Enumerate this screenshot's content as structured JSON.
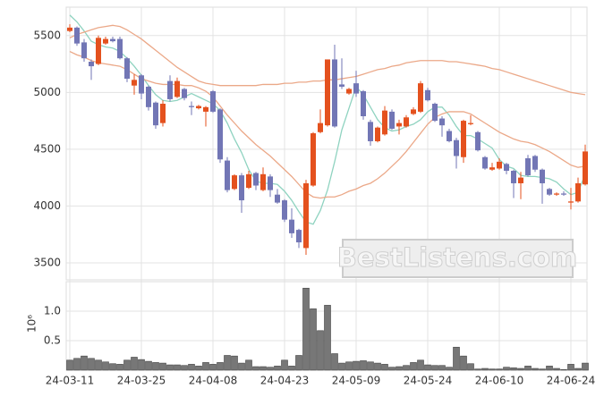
{
  "chart_data": [
    {
      "type": "candlestick",
      "annotation": "BestListens.com",
      "up_color": "#e4511e",
      "down_color": "#7276b5",
      "open": [
        5540,
        5570,
        5440,
        5270,
        5250,
        5430,
        5470,
        5470,
        5300,
        5060,
        5150,
        5050,
        4910,
        4730,
        5100,
        4960,
        5030,
        4880,
        4860,
        4830,
        5010,
        4850,
        4400,
        4150,
        4270,
        4160,
        4290,
        4140,
        4260,
        4100,
        4050,
        3880,
        3790,
        3630,
        4180,
        4650,
        4710,
        5290,
        5070,
        4990,
        5080,
        5010,
        4740,
        4570,
        4630,
        4830,
        4700,
        4700,
        4810,
        4830,
        5020,
        4900,
        4770,
        4660,
        4580,
        4430,
        4720,
        4650,
        4430,
        4320,
        4330,
        4370,
        4310,
        4200,
        4420,
        4440,
        4320,
        4150,
        4100,
        4110,
        4030,
        4040,
        4190
      ],
      "high": [
        5600,
        5580,
        5470,
        5290,
        5500,
        5490,
        5490,
        5490,
        5310,
        5160,
        5160,
        5060,
        4920,
        4930,
        5150,
        5130,
        5040,
        4920,
        4890,
        4880,
        5020,
        4860,
        4430,
        4280,
        4290,
        4310,
        4300,
        4340,
        4280,
        4150,
        4060,
        3980,
        3800,
        4230,
        4650,
        4850,
        5290,
        5420,
        5300,
        5040,
        5190,
        5020,
        4760,
        4700,
        4880,
        4850,
        4760,
        4800,
        4870,
        5100,
        5040,
        4910,
        4790,
        4680,
        4600,
        4760,
        4800,
        4660,
        4440,
        4380,
        4420,
        4380,
        4320,
        4300,
        4450,
        4450,
        4330,
        4160,
        4120,
        4130,
        4160,
        4250,
        4540
      ],
      "low": [
        5530,
        5410,
        5270,
        5110,
        5240,
        5420,
        5440,
        5290,
        5090,
        4980,
        4940,
        4840,
        4680,
        4700,
        4920,
        4950,
        4930,
        4800,
        4850,
        4700,
        4820,
        4380,
        4120,
        4140,
        3940,
        4150,
        4140,
        4130,
        4080,
        4020,
        3860,
        3720,
        3630,
        3570,
        4170,
        4640,
        4700,
        4690,
        5030,
        4980,
        4960,
        4760,
        4530,
        4560,
        4620,
        4670,
        4630,
        4690,
        4800,
        4820,
        4920,
        4740,
        4610,
        4560,
        4330,
        4380,
        4710,
        4480,
        4320,
        4310,
        4320,
        4280,
        4070,
        4060,
        4260,
        4300,
        4020,
        4090,
        4090,
        4090,
        3970,
        4030,
        4180
      ],
      "close": [
        5570,
        5430,
        5300,
        5230,
        5480,
        5470,
        5450,
        5300,
        5120,
        5110,
        4990,
        4870,
        4710,
        4900,
        4940,
        5100,
        4950,
        4870,
        4880,
        4870,
        4830,
        4410,
        4140,
        4270,
        4050,
        4280,
        4180,
        4280,
        4140,
        4030,
        3880,
        3760,
        3680,
        4200,
        4640,
        4730,
        5290,
        4700,
        5050,
        5030,
        4990,
        4790,
        4570,
        4690,
        4840,
        4680,
        4730,
        4780,
        4850,
        5080,
        4930,
        4750,
        4710,
        4570,
        4440,
        4750,
        4730,
        4490,
        4330,
        4340,
        4390,
        4310,
        4200,
        4250,
        4270,
        4320,
        4200,
        4100,
        4110,
        4100,
        4040,
        4200,
        4480
      ],
      "series": [
        {
          "color": "#8fd3c0",
          "values": [
            5680,
            5620,
            5540,
            5450,
            5420,
            5400,
            5390,
            5360,
            5300,
            5230,
            5150,
            5060,
            4980,
            4930,
            4920,
            4930,
            4960,
            4990,
            4960,
            4930,
            4900,
            4840,
            4730,
            4590,
            4470,
            4320,
            4220,
            4200,
            4200,
            4190,
            4130,
            4050,
            3950,
            3860,
            3840,
            3960,
            4140,
            4390,
            4670,
            4860,
            5050,
            4980,
            4870,
            4760,
            4690,
            4660,
            4670,
            4700,
            4720,
            4760,
            4830,
            4870,
            4870,
            4800,
            4700,
            4620,
            4620,
            4590,
            4550,
            4510,
            4410,
            4350,
            4330,
            4270,
            4260,
            4260,
            4250,
            4240,
            4210,
            4150,
            4100,
            4120,
            4280
          ]
        },
        {
          "color": "#eba888",
          "values": [
            5360,
            5330,
            5310,
            5280,
            5260,
            5250,
            5240,
            5230,
            5200,
            5160,
            5120,
            5100,
            5080,
            5070,
            5070,
            5070,
            5060,
            5060,
            5040,
            5010,
            4960,
            4880,
            4800,
            4730,
            4660,
            4600,
            4540,
            4490,
            4440,
            4380,
            4320,
            4260,
            4190,
            4120,
            4080,
            4070,
            4080,
            4080,
            4100,
            4130,
            4150,
            4180,
            4200,
            4240,
            4290,
            4350,
            4410,
            4480,
            4560,
            4640,
            4720,
            4780,
            4810,
            4830,
            4830,
            4830,
            4810,
            4770,
            4730,
            4690,
            4650,
            4620,
            4590,
            4570,
            4560,
            4540,
            4510,
            4480,
            4440,
            4400,
            4360,
            4340,
            4350
          ]
        },
        {
          "color": "#eba888",
          "values": [
            5480,
            5510,
            5530,
            5550,
            5570,
            5580,
            5590,
            5580,
            5550,
            5510,
            5470,
            5420,
            5370,
            5320,
            5270,
            5220,
            5180,
            5140,
            5100,
            5080,
            5070,
            5060,
            5060,
            5060,
            5060,
            5060,
            5060,
            5070,
            5070,
            5070,
            5080,
            5080,
            5090,
            5090,
            5100,
            5100,
            5110,
            5110,
            5120,
            5130,
            5140,
            5160,
            5180,
            5200,
            5210,
            5230,
            5240,
            5260,
            5270,
            5280,
            5280,
            5280,
            5280,
            5270,
            5270,
            5260,
            5250,
            5240,
            5230,
            5210,
            5200,
            5180,
            5160,
            5140,
            5120,
            5100,
            5080,
            5060,
            5040,
            5020,
            5000,
            4990,
            4980
          ]
        }
      ],
      "ylim": [
        3350,
        5750
      ],
      "yticks": [
        3500,
        4000,
        4500,
        5000,
        5500
      ],
      "grid": true
    },
    {
      "type": "bar",
      "ylabel": "10⁶",
      "color": "#777777",
      "categories": [
        "24-03-11",
        null,
        null,
        null,
        null,
        null,
        null,
        null,
        null,
        null,
        "24-03-25",
        null,
        null,
        null,
        null,
        null,
        null,
        null,
        null,
        null,
        "24-04-08",
        null,
        null,
        null,
        null,
        null,
        null,
        null,
        null,
        null,
        "24-04-23",
        null,
        null,
        null,
        null,
        null,
        null,
        null,
        null,
        null,
        "24-05-09",
        null,
        null,
        null,
        null,
        null,
        null,
        null,
        null,
        null,
        "24-05-24",
        null,
        null,
        null,
        null,
        null,
        null,
        null,
        null,
        null,
        "24-06-10",
        null,
        null,
        null,
        null,
        null,
        null,
        null,
        null,
        null,
        "24-06-24",
        null,
        null
      ],
      "values": [
        0.17,
        0.2,
        0.24,
        0.2,
        0.17,
        0.14,
        0.11,
        0.1,
        0.17,
        0.22,
        0.18,
        0.15,
        0.13,
        0.12,
        0.09,
        0.09,
        0.08,
        0.1,
        0.07,
        0.13,
        0.1,
        0.13,
        0.25,
        0.24,
        0.12,
        0.17,
        0.06,
        0.06,
        0.05,
        0.07,
        0.17,
        0.07,
        0.25,
        1.39,
        1.04,
        0.67,
        1.1,
        0.28,
        0.12,
        0.14,
        0.15,
        0.16,
        0.14,
        0.12,
        0.1,
        0.05,
        0.06,
        0.08,
        0.13,
        0.17,
        0.09,
        0.08,
        0.08,
        0.05,
        0.39,
        0.24,
        0.11,
        0.02,
        0.03,
        0.02,
        0.02,
        0.05,
        0.04,
        0.03,
        0.07,
        0.03,
        0.02,
        0.07,
        0.03,
        0.01,
        0.1,
        0.03,
        0.12
      ],
      "ylim": [
        0,
        1.5
      ],
      "yticks": [
        0.5,
        {
          "value": 1,
          "label": "1.0"
        }
      ],
      "grid": true
    }
  ]
}
